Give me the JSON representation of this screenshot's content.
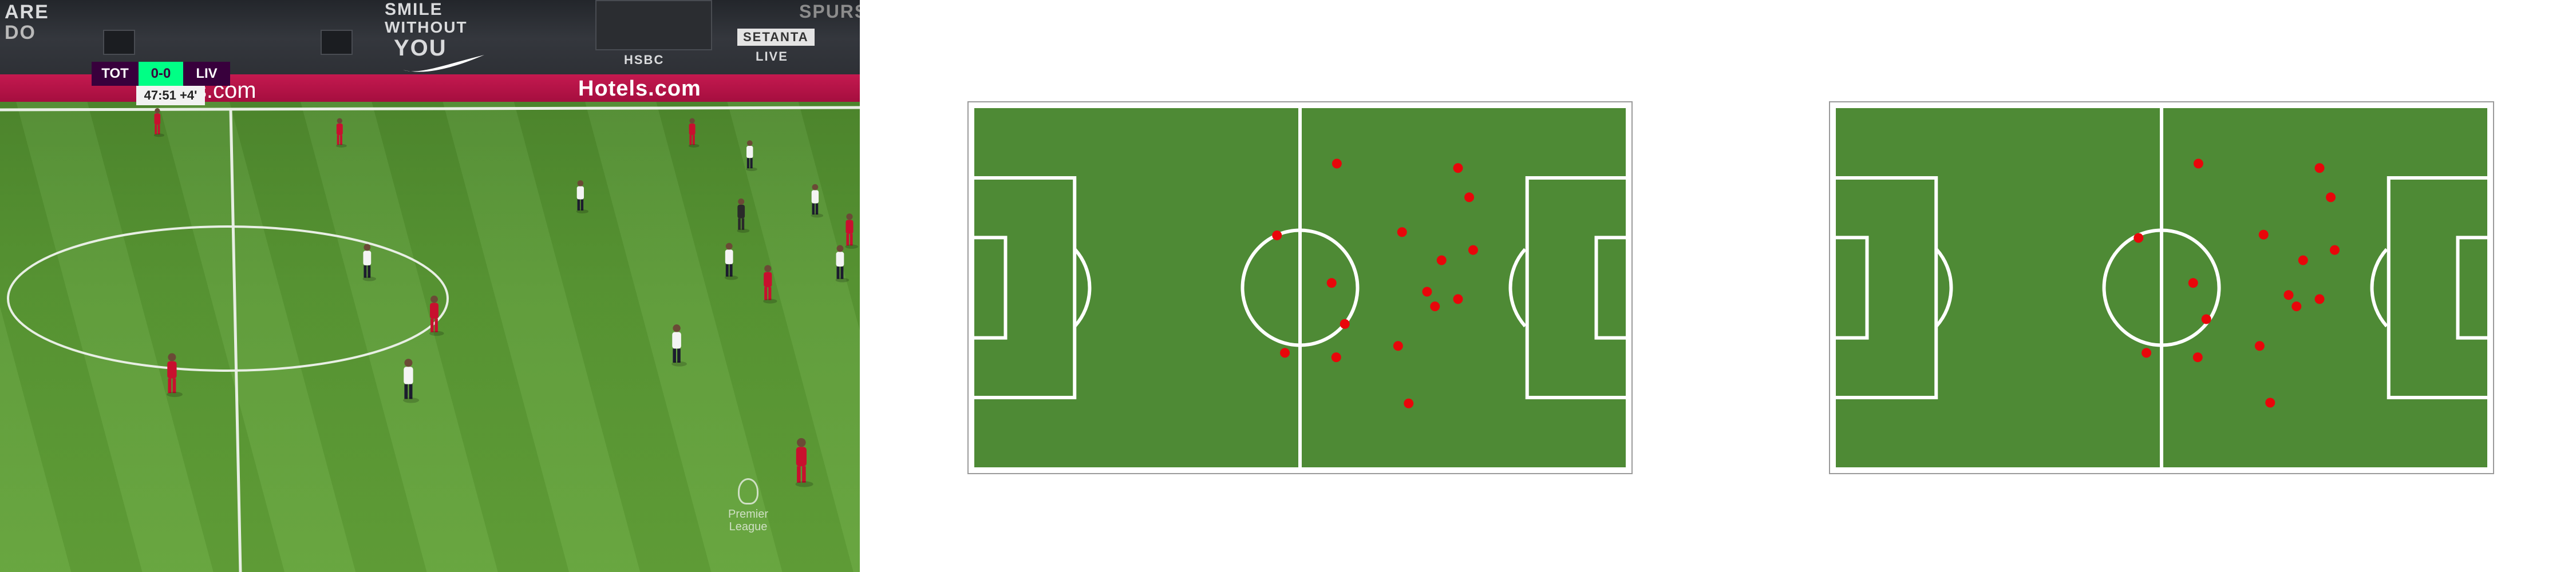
{
  "broadcast": {
    "stand_texts": [
      "ARE",
      "DO",
      "SMILE",
      "WITHOUT",
      "YOU",
      "SETANTA",
      "SPURS",
      "LIVE",
      "HSBC"
    ],
    "ad_text": "Hotels.com",
    "ad_text_left": "ls.com",
    "scoreboard": {
      "home": "TOT",
      "score": "0-0",
      "away": "LIV",
      "clock": "47:51",
      "added_time": "+4'"
    },
    "league_logo_line1": "Premier",
    "league_logo_line2": "League",
    "colors": {
      "home_kit": "#ffffff",
      "away_kit": "#c8102e",
      "scoreboard_bg": "#38003c",
      "score_bg": "#00ff85",
      "grass": "#5a9934"
    },
    "players": [
      {
        "team": "away",
        "fx": 0.183,
        "fy": 0.215
      },
      {
        "team": "away",
        "fx": 0.395,
        "fy": 0.233
      },
      {
        "team": "away",
        "fx": 0.805,
        "fy": 0.233
      },
      {
        "team": "home",
        "fx": 0.872,
        "fy": 0.273
      },
      {
        "team": "home",
        "fx": 0.675,
        "fy": 0.345
      },
      {
        "team": "home",
        "fx": 0.948,
        "fy": 0.352
      },
      {
        "team": "ref",
        "fx": 0.862,
        "fy": 0.378
      },
      {
        "team": "away",
        "fx": 0.988,
        "fy": 0.405
      },
      {
        "team": "home",
        "fx": 0.427,
        "fy": 0.46
      },
      {
        "team": "home",
        "fx": 0.848,
        "fy": 0.458
      },
      {
        "team": "home",
        "fx": 0.977,
        "fy": 0.462
      },
      {
        "team": "away",
        "fx": 0.893,
        "fy": 0.498
      },
      {
        "team": "away",
        "fx": 0.505,
        "fy": 0.553
      },
      {
        "team": "home",
        "fx": 0.787,
        "fy": 0.605
      },
      {
        "team": "away",
        "fx": 0.2,
        "fy": 0.657
      },
      {
        "team": "home",
        "fx": 0.475,
        "fy": 0.667
      },
      {
        "team": "away",
        "fx": 0.932,
        "fy": 0.81
      }
    ]
  },
  "radars": [
    {
      "dots": [
        [
          0.556,
          0.161
        ],
        [
          0.74,
          0.173
        ],
        [
          0.757,
          0.253
        ],
        [
          0.655,
          0.348
        ],
        [
          0.465,
          0.357
        ],
        [
          0.763,
          0.397
        ],
        [
          0.715,
          0.425
        ],
        [
          0.548,
          0.487
        ],
        [
          0.693,
          0.511
        ],
        [
          0.74,
          0.531
        ],
        [
          0.705,
          0.551
        ],
        [
          0.568,
          0.599
        ],
        [
          0.649,
          0.659
        ],
        [
          0.477,
          0.678
        ],
        [
          0.555,
          0.69
        ],
        [
          0.665,
          0.816
        ]
      ]
    },
    {
      "dots": [
        [
          0.556,
          0.161
        ],
        [
          0.74,
          0.173
        ],
        [
          0.757,
          0.253
        ],
        [
          0.655,
          0.355
        ],
        [
          0.465,
          0.364
        ],
        [
          0.763,
          0.397
        ],
        [
          0.715,
          0.425
        ],
        [
          0.548,
          0.487
        ],
        [
          0.693,
          0.52
        ],
        [
          0.74,
          0.531
        ],
        [
          0.705,
          0.551
        ],
        [
          0.568,
          0.586
        ],
        [
          0.649,
          0.659
        ],
        [
          0.477,
          0.678
        ],
        [
          0.555,
          0.69
        ],
        [
          0.665,
          0.814
        ]
      ]
    }
  ],
  "radar_colors": {
    "grass": "#4e8a35",
    "lines": "#ffffff",
    "dots": "#e8060a",
    "frame": "#9a9a9a"
  }
}
